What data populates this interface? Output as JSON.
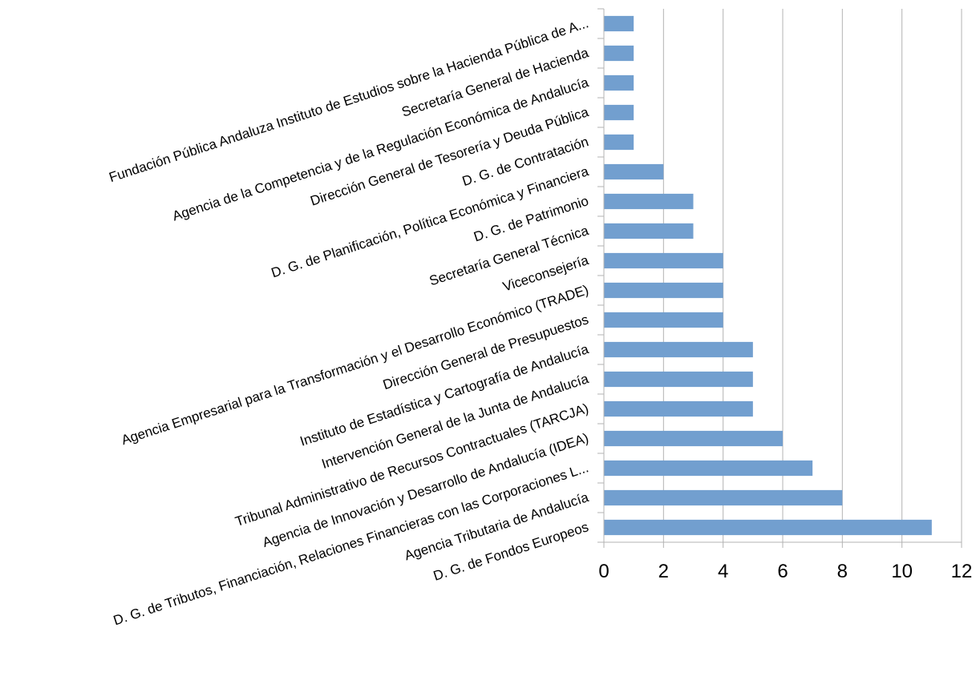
{
  "chart_data": {
    "type": "bar",
    "orientation": "horizontal",
    "categories": [
      "D. G. de Fondos Europeos",
      "Agencia Tributaria de Andalucía",
      "D. G. de Tributos, Financiación, Relaciones Financieras con las Corporaciones L...",
      "Agencia de Innovación y Desarrollo de Andalucía (IDEA)",
      "Tribunal Administrativo de Recursos Contractuales (TARCJA)",
      "Intervención General de la Junta de Andalucía",
      "Instituto de Estadística y Cartografía de Andalucía",
      "Dirección General de Presupuestos",
      "Agencia Empresarial para la Transformación y el Desarrollo Económico (TRADE)",
      "Viceconsejería",
      "Secretaría General Técnica",
      "D. G. de Patrimonio",
      "D. G. de Planificación, Política Económica y Financiera",
      "D. G. de Contratación",
      "Dirección General de Tesorería y Deuda Pública",
      "Agencia de la Competencia y de la Regulación Económica de Andalucía",
      "Secretaría General de Hacienda",
      "Fundación Pública Andaluza Instituto de Estudios sobre la Hacienda Pública de A..."
    ],
    "values": [
      11,
      8,
      7,
      6,
      5,
      5,
      5,
      4,
      4,
      4,
      3,
      3,
      2,
      1,
      1,
      1,
      1,
      1
    ],
    "xlim": [
      0,
      12
    ],
    "xticks": [
      "0",
      "2",
      "4",
      "6",
      "8",
      "10",
      "12"
    ],
    "grid": "vertical",
    "legend": "none",
    "bar_color": "#729fcf"
  }
}
